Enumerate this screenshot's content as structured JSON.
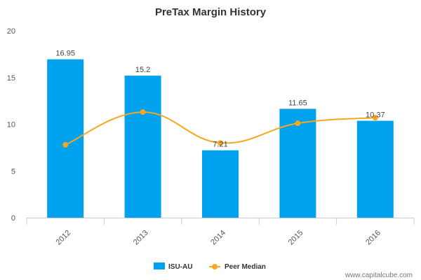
{
  "chart_data": {
    "type": "bar",
    "title": "PreTax Margin History",
    "categories": [
      "2012",
      "2013",
      "2014",
      "2015",
      "2016"
    ],
    "ylim": [
      0,
      20
    ],
    "yticks": [
      0,
      5,
      10,
      15,
      20
    ],
    "grid": false,
    "legend_placement": "bottom",
    "series": [
      {
        "name": "ISU-AU",
        "type": "bar",
        "color": "#00a2ed",
        "values": [
          16.95,
          15.2,
          7.21,
          11.65,
          10.37
        ],
        "data_labels": [
          "16.95",
          "15.2",
          "7.21",
          "11.65",
          "10.37"
        ]
      },
      {
        "name": "Peer Median",
        "type": "line",
        "color": "#f5a623",
        "smooth": true,
        "values": [
          7.8,
          11.3,
          8.0,
          10.1,
          10.7
        ]
      }
    ]
  },
  "watermark": "www.capitalcube.com"
}
